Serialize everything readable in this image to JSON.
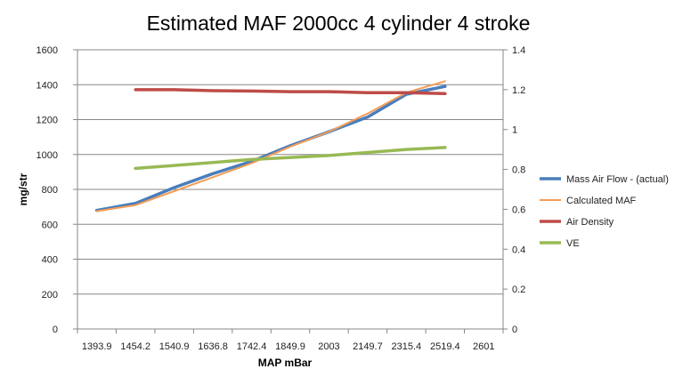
{
  "chart_data": {
    "type": "line",
    "title": "Estimated MAF 2000cc 4 cylinder 4 stroke",
    "xlabel": "MAP mBar",
    "ylabel": "mg/str",
    "y2label": "",
    "categories": [
      "1393.9",
      "1454.2",
      "1540.9",
      "1636.8",
      "1742.4",
      "1849.9",
      "2003",
      "2149.7",
      "2315.4",
      "2519.4",
      "2601"
    ],
    "ylim": [
      0,
      1600
    ],
    "ystep": 200,
    "y2lim": [
      0,
      1.4
    ],
    "y2step": 0.2,
    "grid": true,
    "legend_position": "right",
    "series": [
      {
        "name": "Mass Air Flow - (actual)",
        "axis": "left",
        "color": "#4a7ebb",
        "values": [
          680,
          720,
          810,
          890,
          960,
          1050,
          1130,
          1215,
          1345,
          1390,
          null
        ]
      },
      {
        "name": "Calculated MAF",
        "axis": "left",
        "color": "#f59d56",
        "values": [
          675,
          710,
          790,
          870,
          950,
          1045,
          1130,
          1235,
          1355,
          1420,
          null
        ]
      },
      {
        "name": "Air Density",
        "axis": "right",
        "color": "#be4b48",
        "values": [
          null,
          1.2,
          1.2,
          1.195,
          1.193,
          1.19,
          1.19,
          1.185,
          1.185,
          1.18,
          null
        ]
      },
      {
        "name": "VE",
        "axis": "right",
        "color": "#98b954",
        "values": [
          null,
          0.805,
          0.82,
          0.835,
          0.85,
          0.86,
          0.87,
          0.885,
          0.9,
          0.91,
          null
        ]
      }
    ]
  }
}
